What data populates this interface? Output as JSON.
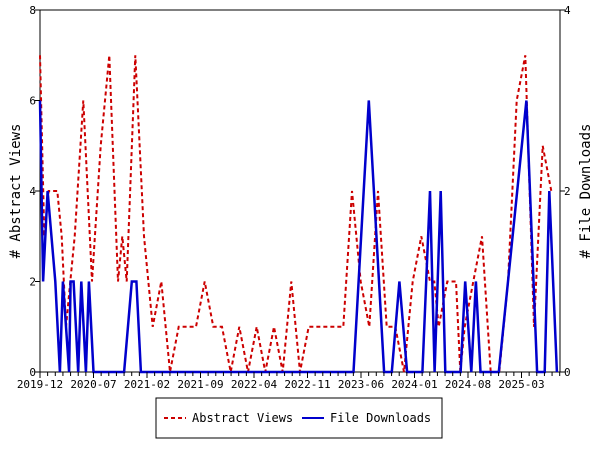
{
  "chart_data": {
    "type": "line",
    "x_ticks": [
      "2019-12",
      "2020-07",
      "2021-02",
      "2021-09",
      "2022-04",
      "2022-11",
      "2023-06",
      "2024-01",
      "2024-08",
      "2025-03"
    ],
    "y_left": {
      "label": "# Abstract Views",
      "min": 0,
      "max": 8,
      "ticks": [
        0,
        2,
        4,
        6,
        8
      ]
    },
    "y_right": {
      "label": "# File Downloads",
      "min": 0,
      "max": 4,
      "ticks": [
        0,
        2,
        4
      ]
    },
    "legend": {
      "position": "bottom",
      "items": [
        "Abstract Views",
        "File Downloads"
      ]
    },
    "series": [
      {
        "name": "Abstract Views",
        "axis": "left",
        "style": "dashed",
        "color": "#cc0000",
        "values": [
          7,
          3,
          4,
          4,
          4,
          3,
          1,
          2,
          3,
          6,
          2,
          5,
          7,
          2,
          3,
          2,
          7,
          3,
          1,
          2,
          0,
          1,
          1,
          1,
          2,
          1,
          1,
          0,
          1,
          0,
          1,
          0,
          1,
          0,
          2,
          0,
          1,
          1,
          1,
          1,
          1,
          4,
          2,
          1,
          4,
          1,
          1,
          0,
          2,
          3,
          2,
          2,
          1,
          2,
          2,
          0,
          1,
          2,
          3,
          0,
          0,
          2,
          6,
          7,
          1,
          5,
          4
        ],
        "x_index": [
          0,
          1,
          2,
          3,
          4,
          5,
          6,
          7,
          8,
          10,
          12,
          14,
          16,
          18,
          19,
          20,
          22,
          24,
          26,
          28,
          30,
          32,
          34,
          36,
          38,
          40,
          42,
          44,
          46,
          48,
          50,
          52,
          54,
          56,
          58,
          60,
          62,
          64,
          66,
          68,
          70,
          72,
          74,
          76,
          78,
          80,
          82,
          84,
          86,
          88,
          90,
          91,
          92,
          94,
          96,
          97,
          98,
          100,
          102,
          104,
          106,
          108,
          110,
          112,
          114,
          116,
          118
        ]
      },
      {
        "name": "File Downloads",
        "axis": "right",
        "style": "solid",
        "color": "#0000cc",
        "values": [
          3,
          1,
          2,
          1,
          0,
          1,
          0,
          1,
          1,
          0,
          1,
          0,
          1,
          0,
          0,
          0,
          0,
          0,
          1,
          1,
          0,
          0,
          0,
          0,
          0,
          0,
          0,
          0,
          0,
          0,
          0,
          0,
          0,
          0,
          0,
          0,
          0,
          0,
          0,
          0,
          0,
          3,
          0,
          0,
          1,
          0,
          0,
          2,
          0,
          2,
          0,
          0,
          0,
          1,
          0,
          1,
          0,
          0,
          3,
          0,
          0,
          2,
          0
        ],
        "x_index": [
          0,
          2,
          5,
          10,
          13,
          15,
          19,
          20,
          22,
          25,
          27,
          30,
          32,
          35,
          40,
          45,
          50,
          55,
          60,
          63,
          66,
          70,
          75,
          80,
          85,
          90,
          92,
          95,
          100,
          105,
          110,
          112,
          115,
          120,
          125,
          130,
          135,
          140,
          145,
          150,
          205,
          215,
          225,
          230,
          235,
          240,
          250,
          255,
          258,
          262,
          265,
          270,
          275,
          278,
          282,
          285,
          288,
          300,
          318,
          325,
          330,
          333,
          338
        ]
      }
    ]
  }
}
